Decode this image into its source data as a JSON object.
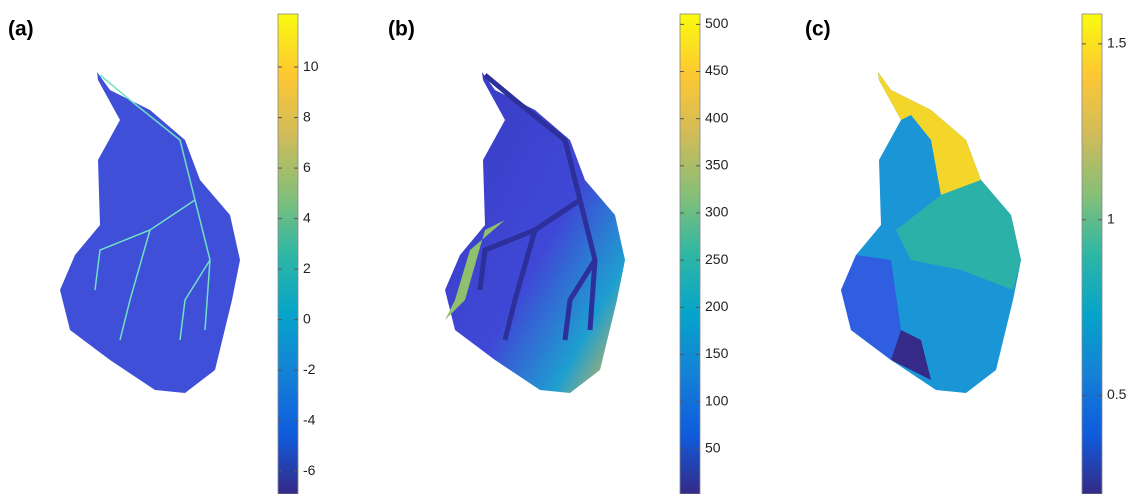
{
  "panels": [
    {
      "label": "(a)",
      "colorbar": {
        "lim": [
          -6.9,
          12.1
        ],
        "ticks": [
          -6,
          -4,
          -2,
          0,
          2,
          4,
          6,
          8,
          10
        ]
      }
    },
    {
      "label": "(b)",
      "colorbar": {
        "lim": [
          2,
          511
        ],
        "ticks": [
          50,
          100,
          150,
          200,
          250,
          300,
          350,
          400,
          450,
          500
        ]
      }
    },
    {
      "label": "(c)",
      "colorbar": {
        "lim": [
          0.22,
          1.585
        ],
        "ticks": [
          0.5,
          1,
          1.5
        ]
      }
    }
  ]
}
